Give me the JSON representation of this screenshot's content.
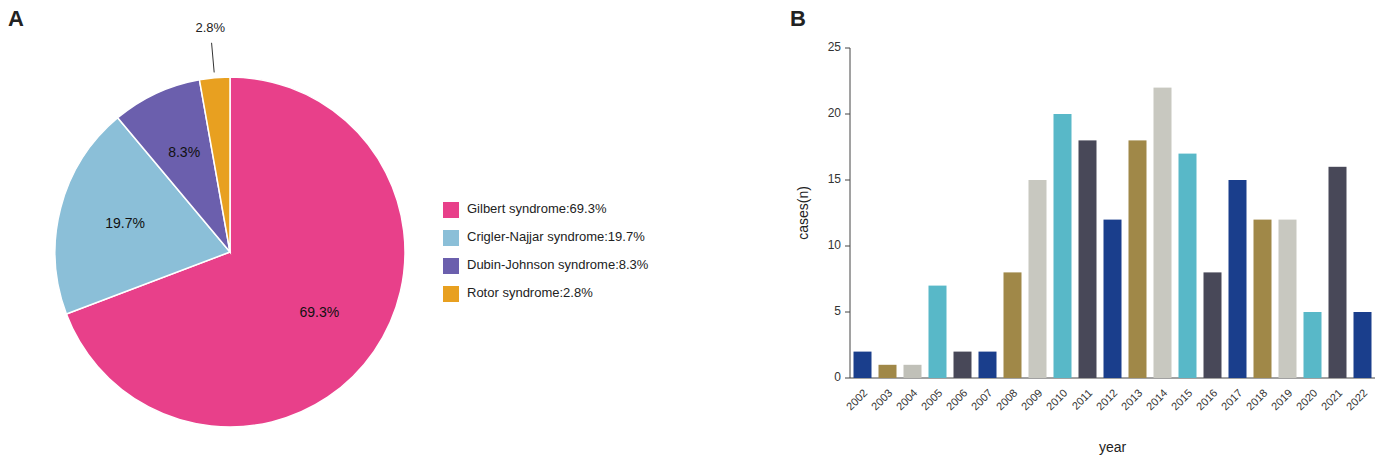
{
  "chart_data": [
    {
      "type": "pie",
      "title": "A",
      "categories": [
        "Gilbert syndrome:69.3%",
        "Crigler-Najjar syndrome:19.7%",
        "Dubin-Johnson syndrome:8.3%",
        "Rotor syndrome:2.8%"
      ],
      "values": [
        69.3,
        19.7,
        8.3,
        2.8
      ],
      "value_labels": [
        "69.3%",
        "19.7%",
        "8.3%",
        "2.8%"
      ],
      "colors": [
        "#E8408A",
        "#8BBFD8",
        "#6B5FAD",
        "#E8A020"
      ],
      "data_labels": true,
      "legend": "right"
    },
    {
      "type": "bar",
      "title": "B",
      "categories": [
        "2002",
        "2003",
        "2004",
        "2005",
        "2006",
        "2007",
        "2008",
        "2009",
        "2010",
        "2011",
        "2012",
        "2013",
        "2014",
        "2015",
        "2016",
        "2017",
        "2018",
        "2019",
        "2020",
        "2021",
        "2022"
      ],
      "values": [
        2,
        1,
        1,
        7,
        2,
        2,
        8,
        15,
        20,
        18,
        12,
        18,
        22,
        17,
        8,
        15,
        12,
        12,
        5,
        16,
        5
      ],
      "colors": [
        "#1A3E8C",
        "#A08848",
        "#C0C0B8",
        "#58B8C8",
        "#484858",
        "#1A3E8C",
        "#A08848",
        "#C8C8C0",
        "#58B8C8",
        "#484858",
        "#1A3E8C",
        "#A08848",
        "#C8C8C0",
        "#58B8C8",
        "#484858",
        "#1A3E8C",
        "#A08848",
        "#C8C8C0",
        "#58B8C8",
        "#484858",
        "#1A3E8C"
      ],
      "xlabel": "year",
      "ylabel": "cases(n)",
      "ylim": [
        0,
        25
      ],
      "yticks": [
        0,
        5,
        10,
        15,
        20,
        25
      ],
      "grid": false
    }
  ]
}
